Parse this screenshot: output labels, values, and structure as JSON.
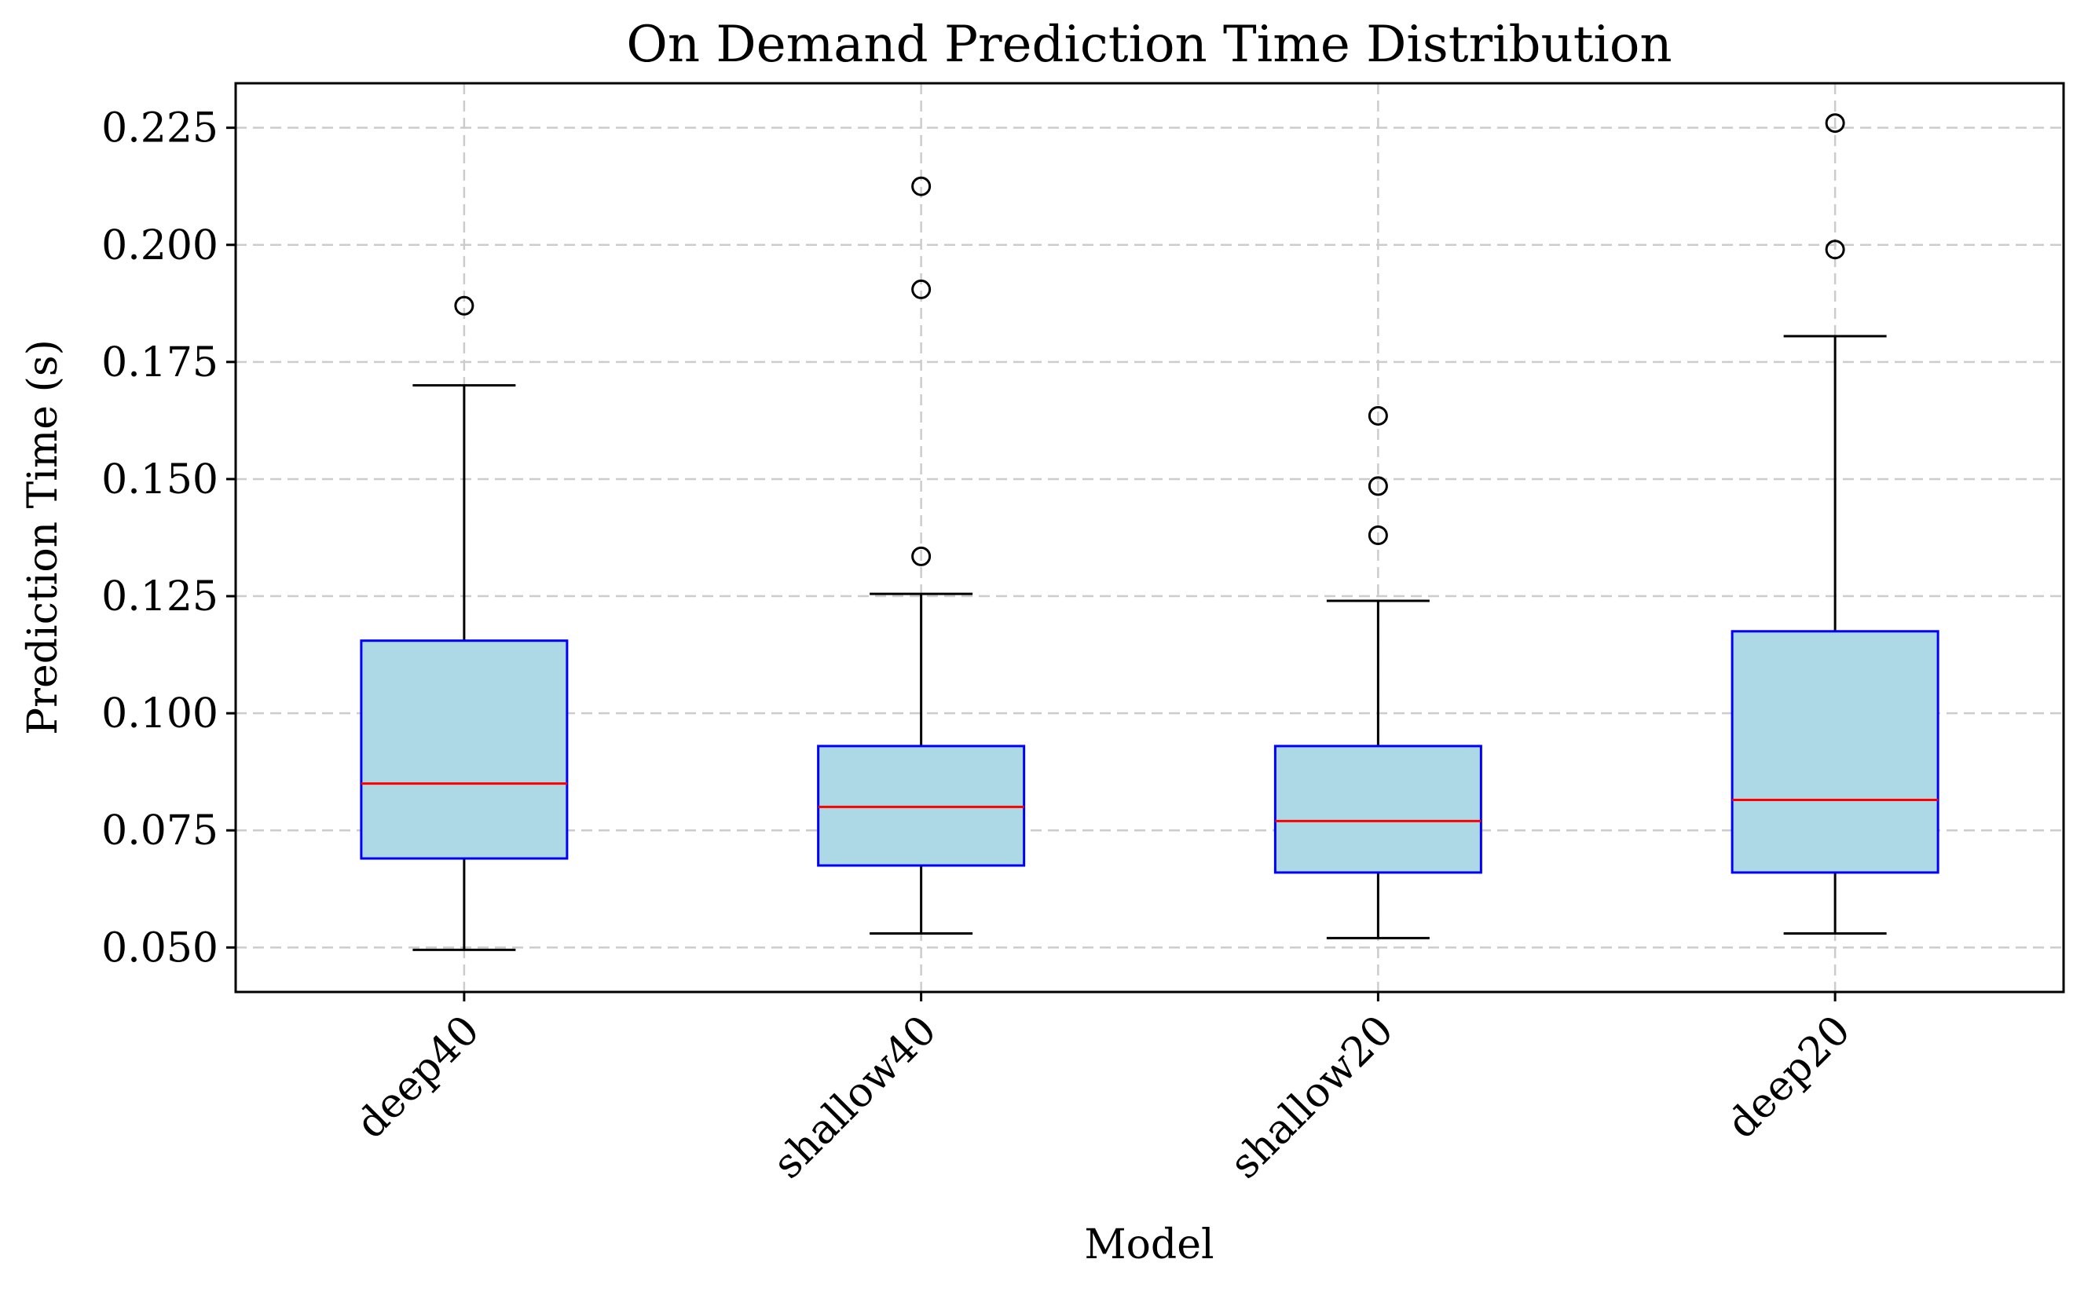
{
  "chart_data": {
    "type": "box",
    "title": "On Demand Prediction Time Distribution",
    "xlabel": "Model",
    "ylabel": "Prediction Time (s)",
    "ylim": [
      0.0405,
      0.2345
    ],
    "yticks": [
      "0.050",
      "0.075",
      "0.100",
      "0.125",
      "0.150",
      "0.175",
      "0.200",
      "0.225"
    ],
    "grid": true,
    "colors": {
      "box_fill": "#add8e6",
      "box_edge": "#0000ff",
      "median": "#ff0000",
      "whisker": "#000000"
    },
    "categories": [
      "deep40",
      "shallow40",
      "shallow20",
      "deep20"
    ],
    "boxes": [
      {
        "name": "deep40",
        "whisker_low": 0.0495,
        "q1": 0.069,
        "median": 0.085,
        "q3": 0.1155,
        "whisker_high": 0.17,
        "outliers": [
          0.187
        ]
      },
      {
        "name": "shallow40",
        "whisker_low": 0.053,
        "q1": 0.0675,
        "median": 0.08,
        "q3": 0.093,
        "whisker_high": 0.1255,
        "outliers": [
          0.1335,
          0.1905,
          0.2125
        ]
      },
      {
        "name": "shallow20",
        "whisker_low": 0.052,
        "q1": 0.066,
        "median": 0.077,
        "q3": 0.093,
        "whisker_high": 0.124,
        "outliers": [
          0.138,
          0.1485,
          0.1635
        ]
      },
      {
        "name": "deep20",
        "whisker_low": 0.053,
        "q1": 0.066,
        "median": 0.0815,
        "q3": 0.1175,
        "whisker_high": 0.1805,
        "outliers": [
          0.199,
          0.226
        ]
      }
    ]
  }
}
